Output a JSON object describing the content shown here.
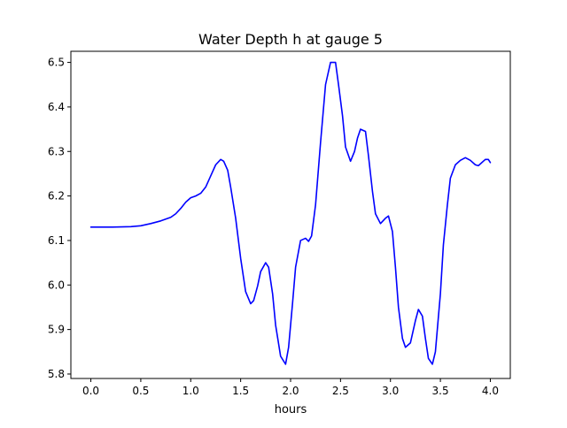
{
  "chart_data": {
    "type": "line",
    "title": "Water Depth h at gauge 5",
    "xlabel": "hours",
    "ylabel": "",
    "xlim": [
      -0.2,
      4.2
    ],
    "ylim": [
      5.79,
      6.525
    ],
    "xticks": [
      0.0,
      0.5,
      1.0,
      1.5,
      2.0,
      2.5,
      3.0,
      3.5,
      4.0
    ],
    "xtick_labels": [
      "0.0",
      "0.5",
      "1.0",
      "1.5",
      "2.0",
      "2.5",
      "3.0",
      "3.5",
      "4.0"
    ],
    "yticks": [
      5.8,
      5.9,
      6.0,
      6.1,
      6.2,
      6.3,
      6.4,
      6.5
    ],
    "ytick_labels": [
      "5.8",
      "5.9",
      "6.0",
      "6.1",
      "6.2",
      "6.3",
      "6.4",
      "6.5"
    ],
    "grid": false,
    "legend": "none",
    "series": [
      {
        "color": "#0000ff",
        "x": [
          0.0,
          0.2,
          0.4,
          0.5,
          0.6,
          0.7,
          0.8,
          0.85,
          0.9,
          0.95,
          1.0,
          1.05,
          1.1,
          1.15,
          1.2,
          1.25,
          1.3,
          1.33,
          1.37,
          1.4,
          1.45,
          1.5,
          1.55,
          1.6,
          1.63,
          1.67,
          1.7,
          1.75,
          1.78,
          1.82,
          1.85,
          1.9,
          1.95,
          1.98,
          2.02,
          2.05,
          2.1,
          2.15,
          2.18,
          2.21,
          2.25,
          2.3,
          2.35,
          2.4,
          2.45,
          2.48,
          2.52,
          2.55,
          2.6,
          2.64,
          2.67,
          2.7,
          2.75,
          2.78,
          2.82,
          2.85,
          2.9,
          2.95,
          2.98,
          3.02,
          3.05,
          3.08,
          3.12,
          3.15,
          3.2,
          3.25,
          3.28,
          3.32,
          3.35,
          3.38,
          3.42,
          3.45,
          3.5,
          3.53,
          3.57,
          3.6,
          3.65,
          3.7,
          3.75,
          3.8,
          3.85,
          3.88,
          3.9,
          3.93,
          3.95,
          3.98,
          4.0
        ],
        "y": [
          6.13,
          6.13,
          6.131,
          6.133,
          6.138,
          6.144,
          6.152,
          6.16,
          6.172,
          6.186,
          6.196,
          6.2,
          6.206,
          6.22,
          6.245,
          6.27,
          6.282,
          6.278,
          6.258,
          6.22,
          6.15,
          6.06,
          5.985,
          5.958,
          5.965,
          5.998,
          6.03,
          6.05,
          6.04,
          5.98,
          5.91,
          5.84,
          5.822,
          5.86,
          5.96,
          6.04,
          6.1,
          6.105,
          6.098,
          6.11,
          6.18,
          6.32,
          6.45,
          6.5,
          6.5,
          6.45,
          6.38,
          6.31,
          6.278,
          6.3,
          6.33,
          6.35,
          6.345,
          6.29,
          6.21,
          6.16,
          6.138,
          6.15,
          6.155,
          6.12,
          6.04,
          5.95,
          5.88,
          5.86,
          5.87,
          5.92,
          5.945,
          5.93,
          5.88,
          5.835,
          5.822,
          5.85,
          5.98,
          6.09,
          6.18,
          6.24,
          6.27,
          6.28,
          6.286,
          6.28,
          6.27,
          6.268,
          6.272,
          6.278,
          6.282,
          6.282,
          6.275
        ]
      }
    ]
  }
}
